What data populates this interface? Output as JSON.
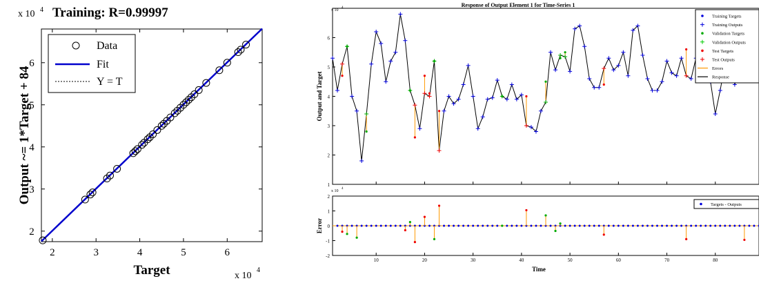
{
  "chart_data": [
    {
      "type": "scatter",
      "title": "Training: R=0.99997",
      "xlabel": "Target",
      "ylabel": "Output ~= 1*Target + 84",
      "x_multiplier": "x 10",
      "x_multiplier_exp": "4",
      "y_multiplier": "x 10",
      "y_multiplier_exp": "4",
      "xlim": [
        17500,
        68000
      ],
      "ylim": [
        17500,
        68000
      ],
      "xticks": [
        20000,
        30000,
        40000,
        50000,
        60000
      ],
      "xticklabels": [
        "2",
        "3",
        "4",
        "5",
        "6"
      ],
      "yticks": [
        20000,
        30000,
        40000,
        50000,
        60000
      ],
      "yticklabels": [
        "2",
        "3",
        "4",
        "5",
        "6"
      ],
      "legend": {
        "position": "top-left",
        "entries": [
          {
            "label": "Data",
            "style": "circle",
            "color": "#000000"
          },
          {
            "label": "Fit",
            "style": "line",
            "color": "#0000cc"
          },
          {
            "label": "Y = T",
            "style": "dotted",
            "color": "#000000"
          }
        ]
      },
      "points": [
        [
          17800,
          17800
        ],
        [
          27500,
          27500
        ],
        [
          28700,
          28700
        ],
        [
          29200,
          29200
        ],
        [
          32500,
          32500
        ],
        [
          33200,
          33200
        ],
        [
          34800,
          34800
        ],
        [
          38500,
          38500
        ],
        [
          39000,
          39000
        ],
        [
          39500,
          39500
        ],
        [
          40500,
          40500
        ],
        [
          41000,
          41000
        ],
        [
          41800,
          41800
        ],
        [
          42300,
          42300
        ],
        [
          43000,
          43000
        ],
        [
          44000,
          44000
        ],
        [
          45000,
          45000
        ],
        [
          45500,
          45500
        ],
        [
          46200,
          46200
        ],
        [
          47000,
          47000
        ],
        [
          48000,
          48000
        ],
        [
          48600,
          48600
        ],
        [
          49300,
          49300
        ],
        [
          50000,
          50000
        ],
        [
          50600,
          50600
        ],
        [
          51200,
          51200
        ],
        [
          51800,
          51800
        ],
        [
          52500,
          52500
        ],
        [
          53500,
          53500
        ],
        [
          55200,
          55200
        ],
        [
          58200,
          58200
        ],
        [
          60000,
          60000
        ],
        [
          62500,
          62500
        ],
        [
          63100,
          63100
        ],
        [
          64300,
          64300
        ]
      ],
      "fit": {
        "slope": 1,
        "intercept": 84
      }
    },
    {
      "type": "line",
      "title": "Response of Output Element 1 for Time-Series 1",
      "xlabel": "",
      "ylabel": "Output and Target",
      "y_multiplier": "x 10",
      "y_multiplier_exp": "4",
      "xlim": [
        1,
        89
      ],
      "ylim": [
        10000,
        70000
      ],
      "yticks": [
        10000,
        20000,
        30000,
        40000,
        50000,
        60000
      ],
      "yticklabels": [
        "1",
        "2",
        "3",
        "4",
        "5",
        "6"
      ],
      "legend": {
        "position": "top-right",
        "entries": [
          {
            "label": "Training Targets",
            "style": "dot",
            "color": "#0000dd"
          },
          {
            "label": "Training Outputs",
            "style": "plus",
            "color": "#0000dd"
          },
          {
            "label": "Validation Targets",
            "style": "dot",
            "color": "#00aa00"
          },
          {
            "label": "Validation Outputs",
            "style": "plus",
            "color": "#00cc00"
          },
          {
            "label": "Test Targets",
            "style": "dot",
            "color": "#ee0000"
          },
          {
            "label": "Test Outputs",
            "style": "plus",
            "color": "#ee0000"
          },
          {
            "label": "Errors",
            "style": "line",
            "color": "#ff9900"
          },
          {
            "label": "Response",
            "style": "line",
            "color": "#000000"
          }
        ]
      },
      "series": [
        {
          "name": "Response",
          "t": [
            1,
            2,
            3,
            4,
            5,
            6,
            7,
            8,
            9,
            10,
            11,
            12,
            13,
            14,
            15,
            16,
            17,
            18,
            19,
            20,
            21,
            22,
            23,
            24,
            25,
            26,
            27,
            28,
            29,
            30,
            31,
            32,
            33,
            34,
            35,
            36,
            37,
            38,
            39,
            40,
            41,
            42,
            43,
            44,
            45,
            46,
            47,
            48,
            49,
            50,
            51,
            52,
            53,
            54,
            55,
            56,
            57,
            58,
            59,
            60,
            61,
            62,
            63,
            64,
            65,
            66,
            67,
            68,
            69,
            70,
            71,
            72,
            73,
            74,
            75,
            76,
            77,
            78,
            79,
            80,
            81,
            82,
            83,
            84,
            85,
            86,
            87,
            88,
            89
          ],
          "values": [
            53000,
            42000,
            51000,
            57000,
            40000,
            35000,
            18000,
            34000,
            51000,
            62000,
            58000,
            45000,
            52000,
            55000,
            68000,
            59000,
            42000,
            37000,
            29000,
            41000,
            40000,
            52000,
            21500,
            35000,
            40000,
            37500,
            39000,
            44000,
            50500,
            40000,
            29000,
            33000,
            39000,
            39500,
            45500,
            40000,
            39000,
            44000,
            39000,
            40500,
            30000,
            29500,
            28000,
            35000,
            38000,
            55000,
            49000,
            54000,
            53500,
            48500,
            63000,
            64000,
            57000,
            46000,
            43000,
            43000,
            49500,
            53000,
            49000,
            50500,
            55000,
            47000,
            62500,
            64000,
            54000,
            46000,
            42000,
            42000,
            45000,
            52000,
            48000,
            47000,
            53000,
            47000,
            46000,
            53000,
            58000,
            47000,
            45000,
            34000,
            42000,
            51000,
            57000,
            44000,
            48000,
            54000,
            51000,
            45500,
            58000
          ]
        },
        {
          "name": "Training Targets",
          "t": [],
          "values": []
        }
      ],
      "validation_points": [
        [
          4,
          57000
        ],
        [
          8,
          28000
        ],
        [
          17,
          42000
        ],
        [
          22,
          52000
        ],
        [
          36,
          40000
        ],
        [
          45,
          45000
        ],
        [
          48,
          53000
        ],
        [
          49,
          55000
        ]
      ],
      "test_points": [
        [
          3,
          47000
        ],
        [
          18,
          26000
        ],
        [
          20,
          47000
        ],
        [
          21,
          41000
        ],
        [
          23,
          35000
        ],
        [
          41,
          40000
        ],
        [
          57,
          44000
        ],
        [
          74,
          56000
        ],
        [
          86,
          45500
        ]
      ]
    },
    {
      "type": "line",
      "title": "",
      "xlabel": "Time",
      "ylabel": "Error",
      "y_multiplier": "x 10",
      "y_multiplier_exp": "4",
      "xlim": [
        1,
        89
      ],
      "ylim": [
        -20000,
        20000
      ],
      "xticks": [
        10,
        20,
        30,
        40,
        50,
        60,
        70,
        80
      ],
      "xticklabels": [
        "10",
        "20",
        "30",
        "40",
        "50",
        "60",
        "70",
        "80"
      ],
      "yticks": [
        -20000,
        -10000,
        0,
        10000,
        20000
      ],
      "yticklabels": [
        "-2",
        "-1",
        "0",
        "1",
        "2"
      ],
      "legend": {
        "position": "top-right",
        "entries": [
          {
            "label": "Targets - Outputs",
            "style": "dot",
            "color": "#0000dd"
          }
        ]
      },
      "errors": [
        [
          3,
          -4000,
          "test"
        ],
        [
          4,
          -5500,
          "val"
        ],
        [
          6,
          -8000,
          "val"
        ],
        [
          17,
          2500,
          "val"
        ],
        [
          16,
          -3000,
          "test"
        ],
        [
          18,
          -11000,
          "test"
        ],
        [
          20,
          6000,
          "test"
        ],
        [
          22,
          -9000,
          "val"
        ],
        [
          23,
          13500,
          "test"
        ],
        [
          36,
          0,
          "val"
        ],
        [
          41,
          10500,
          "test"
        ],
        [
          45,
          7000,
          "val"
        ],
        [
          47,
          -3500,
          "val"
        ],
        [
          48,
          1500,
          "val"
        ],
        [
          57,
          -6000,
          "test"
        ],
        [
          74,
          -9000,
          "test"
        ],
        [
          86,
          -9500,
          "test"
        ]
      ]
    }
  ]
}
